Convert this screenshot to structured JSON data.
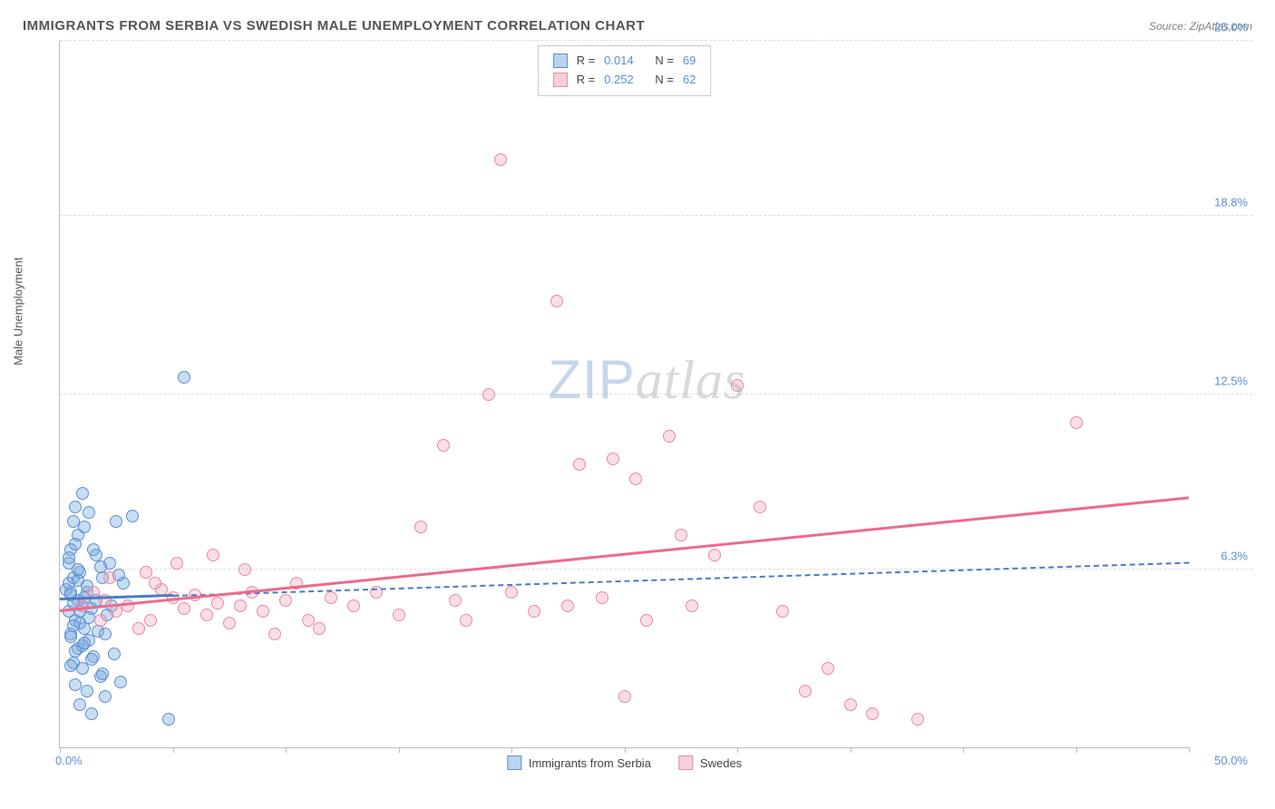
{
  "title": "IMMIGRANTS FROM SERBIA VS SWEDISH MALE UNEMPLOYMENT CORRELATION CHART",
  "source_prefix": "Source: ",
  "source": "ZipAtlas.com",
  "y_axis_title": "Male Unemployment",
  "watermark_zip": "ZIP",
  "watermark_atlas": "atlas",
  "chart": {
    "type": "scatter",
    "background_color": "#ffffff",
    "grid_color": "#dddddd",
    "axis_color": "#bbbbbb",
    "x_range": [
      0,
      50
    ],
    "y_range": [
      0,
      25
    ],
    "x_origin_label": "0.0%",
    "x_max_label": "50.0%",
    "y_ticks": [
      {
        "value": 6.3,
        "label": "6.3%"
      },
      {
        "value": 12.5,
        "label": "12.5%"
      },
      {
        "value": 18.8,
        "label": "18.8%"
      },
      {
        "value": 25.0,
        "label": "25.0%"
      }
    ],
    "x_tick_positions": [
      0,
      5,
      10,
      15,
      20,
      25,
      30,
      35,
      40,
      45,
      50
    ],
    "marker_size": 14,
    "series": [
      {
        "name": "Immigrants from Serbia",
        "color_fill": "rgba(120,170,220,0.4)",
        "color_stroke": "#5b8fd6",
        "R": "0.014",
        "N": "69",
        "trend": {
          "x1": 0,
          "y1": 5.2,
          "x2": 50,
          "y2": 6.5,
          "solid_until_x": 5,
          "color": "#4a7bc8"
        },
        "points": [
          [
            0.3,
            5.6
          ],
          [
            0.5,
            5.4
          ],
          [
            0.4,
            5.8
          ],
          [
            0.8,
            5.2
          ],
          [
            1.0,
            5.0
          ],
          [
            0.6,
            6.0
          ],
          [
            1.2,
            5.5
          ],
          [
            0.9,
            6.2
          ],
          [
            0.4,
            4.8
          ],
          [
            0.7,
            4.5
          ],
          [
            1.1,
            4.2
          ],
          [
            0.5,
            4.0
          ],
          [
            1.3,
            3.8
          ],
          [
            0.8,
            3.5
          ],
          [
            1.5,
            3.2
          ],
          [
            0.6,
            3.0
          ],
          [
            1.0,
            2.8
          ],
          [
            1.8,
            2.5
          ],
          [
            0.7,
            2.2
          ],
          [
            1.2,
            2.0
          ],
          [
            2.0,
            1.8
          ],
          [
            0.9,
            1.5
          ],
          [
            1.4,
            1.2
          ],
          [
            4.8,
            1.0
          ],
          [
            0.5,
            7.0
          ],
          [
            0.8,
            7.5
          ],
          [
            1.1,
            7.8
          ],
          [
            0.6,
            8.0
          ],
          [
            1.3,
            8.3
          ],
          [
            2.5,
            8.0
          ],
          [
            3.2,
            8.2
          ],
          [
            0.7,
            8.5
          ],
          [
            1.0,
            9.0
          ],
          [
            0.4,
            6.5
          ],
          [
            1.6,
            6.8
          ],
          [
            2.2,
            6.5
          ],
          [
            0.8,
            6.3
          ],
          [
            1.9,
            6.0
          ],
          [
            2.8,
            5.8
          ],
          [
            1.1,
            5.3
          ],
          [
            0.6,
            5.1
          ],
          [
            1.4,
            4.9
          ],
          [
            2.1,
            4.7
          ],
          [
            0.9,
            4.4
          ],
          [
            1.7,
            4.1
          ],
          [
            0.5,
            3.9
          ],
          [
            1.0,
            3.6
          ],
          [
            2.4,
            3.3
          ],
          [
            0.7,
            7.2
          ],
          [
            1.5,
            7.0
          ],
          [
            0.4,
            6.7
          ],
          [
            1.8,
            6.4
          ],
          [
            2.6,
            6.1
          ],
          [
            0.8,
            5.9
          ],
          [
            1.2,
            5.7
          ],
          [
            0.5,
            5.5
          ],
          [
            1.6,
            5.2
          ],
          [
            2.3,
            5.0
          ],
          [
            0.9,
            4.8
          ],
          [
            1.3,
            4.6
          ],
          [
            0.6,
            4.3
          ],
          [
            2.0,
            4.0
          ],
          [
            1.1,
            3.7
          ],
          [
            0.7,
            3.4
          ],
          [
            1.4,
            3.1
          ],
          [
            0.5,
            2.9
          ],
          [
            1.9,
            2.6
          ],
          [
            2.7,
            2.3
          ],
          [
            5.5,
            13.1
          ]
        ]
      },
      {
        "name": "Swedes",
        "color_fill": "rgba(240,160,180,0.35)",
        "color_stroke": "#e88aa2",
        "R": "0.252",
        "N": "62",
        "trend": {
          "x1": 0,
          "y1": 4.8,
          "x2": 50,
          "y2": 8.8,
          "color": "#ec6b8c"
        },
        "points": [
          [
            1.5,
            5.5
          ],
          [
            2.0,
            5.2
          ],
          [
            3.0,
            5.0
          ],
          [
            2.5,
            4.8
          ],
          [
            4.0,
            4.5
          ],
          [
            3.5,
            4.2
          ],
          [
            5.0,
            5.3
          ],
          [
            4.5,
            5.6
          ],
          [
            6.0,
            5.4
          ],
          [
            5.5,
            4.9
          ],
          [
            7.0,
            5.1
          ],
          [
            6.5,
            4.7
          ],
          [
            8.0,
            5.0
          ],
          [
            7.5,
            4.4
          ],
          [
            9.0,
            4.8
          ],
          [
            8.5,
            5.5
          ],
          [
            10.0,
            5.2
          ],
          [
            9.5,
            4.0
          ],
          [
            11.0,
            4.5
          ],
          [
            10.5,
            5.8
          ],
          [
            12.0,
            5.3
          ],
          [
            11.5,
            4.2
          ],
          [
            13.0,
            5.0
          ],
          [
            14.0,
            5.5
          ],
          [
            15.0,
            4.7
          ],
          [
            16.0,
            7.8
          ],
          [
            17.0,
            10.7
          ],
          [
            17.5,
            5.2
          ],
          [
            18.0,
            4.5
          ],
          [
            19.0,
            12.5
          ],
          [
            19.5,
            20.8
          ],
          [
            20.0,
            5.5
          ],
          [
            21.0,
            4.8
          ],
          [
            22.0,
            15.8
          ],
          [
            22.5,
            5.0
          ],
          [
            23.0,
            10.0
          ],
          [
            24.0,
            5.3
          ],
          [
            24.5,
            10.2
          ],
          [
            25.0,
            1.8
          ],
          [
            25.5,
            9.5
          ],
          [
            26.0,
            4.5
          ],
          [
            27.0,
            11.0
          ],
          [
            27.5,
            7.5
          ],
          [
            28.0,
            5.0
          ],
          [
            29.0,
            6.8
          ],
          [
            30.0,
            12.8
          ],
          [
            31.0,
            8.5
          ],
          [
            32.0,
            4.8
          ],
          [
            33.0,
            2.0
          ],
          [
            34.0,
            2.8
          ],
          [
            35.0,
            1.5
          ],
          [
            36.0,
            1.2
          ],
          [
            38.0,
            1.0
          ],
          [
            45.0,
            11.5
          ],
          [
            2.2,
            6.0
          ],
          [
            3.8,
            6.2
          ],
          [
            5.2,
            6.5
          ],
          [
            6.8,
            6.8
          ],
          [
            8.2,
            6.3
          ],
          [
            4.2,
            5.8
          ],
          [
            1.0,
            5.0
          ],
          [
            1.8,
            4.5
          ]
        ]
      }
    ]
  },
  "legend": {
    "r_label": "R =",
    "n_label": "N ="
  },
  "bottom_legend": [
    {
      "swatch": "blue",
      "label": "Immigrants from Serbia"
    },
    {
      "swatch": "pink",
      "label": "Swedes"
    }
  ]
}
